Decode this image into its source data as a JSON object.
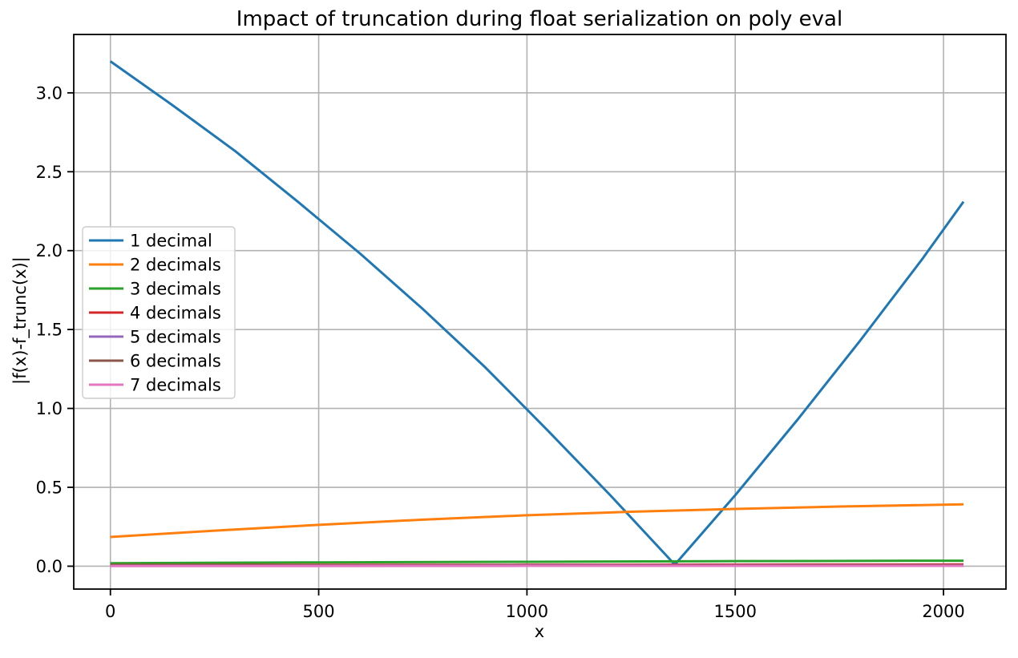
{
  "chart_data": {
    "type": "line",
    "title": "Impact of truncation during float serialization on poly eval",
    "xlabel": "x",
    "ylabel": "|f(x)-f_trunc(x)|",
    "xlim": [
      -88,
      2150
    ],
    "ylim": [
      -0.145,
      3.37
    ],
    "grid": true,
    "legend_position": "center left",
    "xticks": {
      "values": [
        0,
        500,
        1000,
        1500,
        2000
      ],
      "labels": [
        "0",
        "500",
        "1000",
        "1500",
        "2000"
      ]
    },
    "yticks": {
      "values": [
        0.0,
        0.5,
        1.0,
        1.5,
        2.0,
        2.5,
        3.0
      ],
      "labels": [
        "0.0",
        "0.5",
        "1.0",
        "1.5",
        "2.0",
        "2.5",
        "3.0"
      ]
    },
    "series": [
      {
        "name": "1 decimal",
        "color": "#1f77b4",
        "x": [
          0,
          150,
          300,
          450,
          600,
          750,
          900,
          1050,
          1200,
          1355,
          1500,
          1650,
          1800,
          1950,
          2048
        ],
        "y": [
          3.2,
          2.92,
          2.63,
          2.31,
          1.98,
          1.63,
          1.26,
          0.86,
          0.45,
          0.01,
          0.45,
          0.93,
          1.43,
          1.95,
          2.31
        ]
      },
      {
        "name": "2 decimals",
        "color": "#ff7f0e",
        "x": [
          0,
          250,
          500,
          750,
          1000,
          1250,
          1500,
          1750,
          2048
        ],
        "y": [
          0.185,
          0.225,
          0.262,
          0.295,
          0.323,
          0.345,
          0.363,
          0.378,
          0.392
        ]
      },
      {
        "name": "3 decimals",
        "color": "#2ca02c",
        "x": [
          0,
          500,
          1000,
          1500,
          2048
        ],
        "y": [
          0.019,
          0.024,
          0.028,
          0.032,
          0.035
        ]
      },
      {
        "name": "4 decimals",
        "color": "#d62728",
        "x": [
          0,
          500,
          1000,
          1500,
          2048
        ],
        "y": [
          0.007,
          0.008,
          0.009,
          0.01,
          0.011
        ]
      },
      {
        "name": "5 decimals",
        "color": "#9467bd",
        "x": [
          0,
          500,
          1000,
          1500,
          2048
        ],
        "y": [
          0.005,
          0.005,
          0.006,
          0.006,
          0.006
        ]
      },
      {
        "name": "6 decimals",
        "color": "#8c564b",
        "x": [
          0,
          500,
          1000,
          1500,
          2048
        ],
        "y": [
          0.004,
          0.004,
          0.004,
          0.005,
          0.005
        ]
      },
      {
        "name": "7 decimals",
        "color": "#e377c2",
        "x": [
          0,
          500,
          1000,
          1500,
          2048
        ],
        "y": [
          0.001,
          0.001,
          0.002,
          0.002,
          0.002
        ]
      }
    ]
  }
}
